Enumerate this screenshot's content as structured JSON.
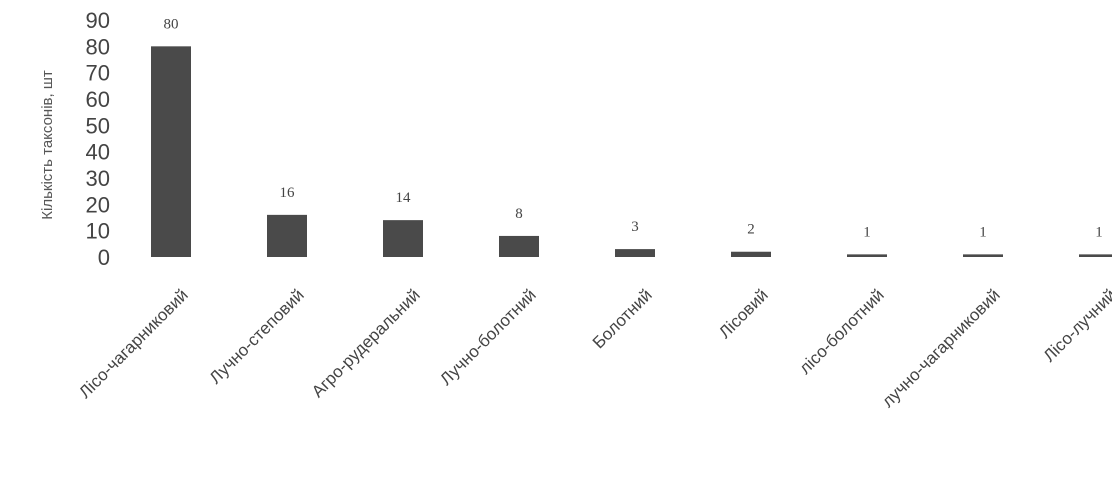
{
  "chart_data": {
    "type": "bar",
    "title": "",
    "xlabel": "",
    "ylabel": "Кількість таксонів, шт",
    "ylim": [
      0,
      90
    ],
    "yticks": [
      0,
      10,
      20,
      30,
      40,
      50,
      60,
      70,
      80,
      90
    ],
    "grid": false,
    "legend": "none",
    "bar_color": "#4a4a4a",
    "categories": [
      "Лісо-чагарниковий",
      "Лучно-степовий",
      "Агро-рудеральний",
      "Лучно-болотний",
      "Болотний",
      "Лісовий",
      "лісо-болотний",
      "лучно-чагарниковий",
      "Лісо-лучний"
    ],
    "values": [
      80,
      16,
      14,
      8,
      3,
      2,
      1,
      1,
      1
    ],
    "data_labels": [
      "80",
      "16",
      "14",
      "8",
      "3",
      "2",
      "1",
      "1",
      "1"
    ]
  }
}
